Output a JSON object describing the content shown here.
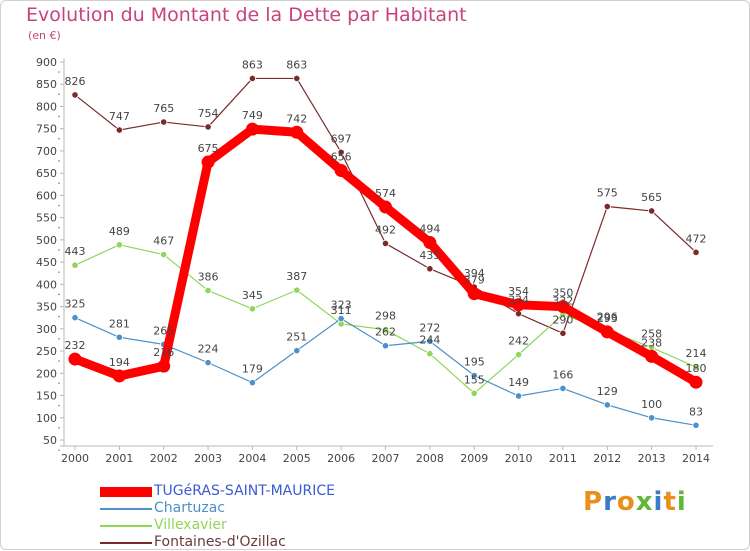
{
  "title": "Evolution du Montant de la Dette par Habitant",
  "unit": "(en €)",
  "logo": "Proxiti",
  "chart_data": {
    "type": "line",
    "x": [
      2000,
      2001,
      2002,
      2003,
      2004,
      2005,
      2006,
      2007,
      2008,
      2009,
      2010,
      2011,
      2012,
      2013,
      2014
    ],
    "ylim": [
      50,
      900
    ],
    "yticks": [
      50,
      100,
      150,
      200,
      250,
      300,
      350,
      400,
      450,
      500,
      550,
      600,
      650,
      700,
      750,
      800,
      850,
      900
    ],
    "grid": false,
    "legend_position": "bottom-left",
    "series": [
      {
        "name": "TUGéRAS-SAINT-MAURICE",
        "color": "#ff0000",
        "values": [
          232,
          194,
          216,
          675,
          749,
          742,
          656,
          574,
          494,
          379,
          354,
          350,
          293,
          238,
          180
        ]
      },
      {
        "name": "Chartuzac",
        "color": "#4e90c8",
        "values": [
          325,
          281,
          265,
          224,
          179,
          251,
          323,
          262,
          272,
          195,
          149,
          166,
          129,
          100,
          83
        ]
      },
      {
        "name": "Villexavier",
        "color": "#8fd65a",
        "values": [
          443,
          489,
          467,
          386,
          345,
          387,
          311,
          298,
          244,
          155,
          242,
          332,
          296,
          258,
          214
        ]
      },
      {
        "name": "Fontaines-d'Ozillac",
        "color": "#7a2a2a",
        "values": [
          826,
          747,
          765,
          754,
          863,
          863,
          697,
          492,
          435,
          394,
          334,
          290,
          575,
          565,
          472
        ]
      }
    ]
  }
}
